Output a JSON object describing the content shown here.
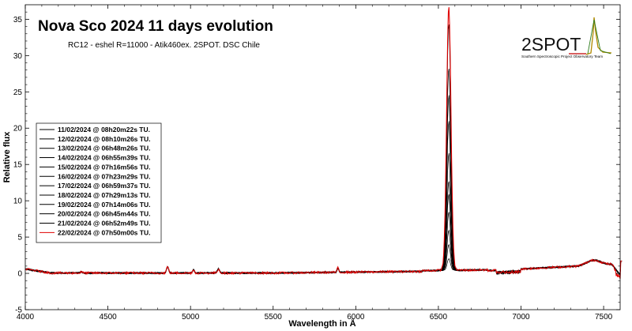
{
  "chart_data": {
    "type": "line",
    "title": "Nova Sco 2024 11 days evolution",
    "subtitle": "RC12 - eshel R=11000 - Atik460ex. 2SPOT. DSC Chile",
    "xlabel": "Wavelength in Å",
    "ylabel": "Relative flux",
    "xlim": [
      4000,
      7600
    ],
    "ylim": [
      -5,
      37
    ],
    "xticks": [
      "4000",
      "4500",
      "5000",
      "5500",
      "6000",
      "6500",
      "7000",
      "7500"
    ],
    "yticks": [
      "-5",
      "0",
      "5",
      "10",
      "15",
      "20",
      "25",
      "30",
      "35"
    ],
    "grid": false,
    "legend_position": "left",
    "peak_wavelength": 6563,
    "series": [
      {
        "name": "11/02/2024 @ 08h20m22s TU.",
        "color": "#000000",
        "peak": 1.6
      },
      {
        "name": "12/02/2024 @ 08h10m26s TU.",
        "color": "#000000",
        "peak": 3.5
      },
      {
        "name": "13/02/2024 @ 06h48m26s TU.",
        "color": "#000000",
        "peak": 5.5
      },
      {
        "name": "14/02/2024 @ 06h55m39s TU.",
        "color": "#000000",
        "peak": 8.0
      },
      {
        "name": "15/02/2024 @ 07h16m56s TU.",
        "color": "#000000",
        "peak": 10.5
      },
      {
        "name": "16/02/2024 @ 07h23m29s TU.",
        "color": "#000000",
        "peak": 12.2
      },
      {
        "name": "17/02/2024 @ 06h59m37s TU.",
        "color": "#000000",
        "peak": 16.0
      },
      {
        "name": "18/02/2024 @ 07h29m13s TU.",
        "color": "#000000",
        "peak": 20.5
      },
      {
        "name": "19/02/2024 @ 07h14m06s TU.",
        "color": "#000000",
        "peak": 24.0
      },
      {
        "name": "20/02/2024 @ 06h45m44s TU.",
        "color": "#000000",
        "peak": 27.8
      },
      {
        "name": "21/02/2024 @ 06h52m49s TU.",
        "color": "#000000",
        "peak": 33.8
      },
      {
        "name": "22/02/2024 @ 07h50m00s TU.",
        "color": "#e00000",
        "peak": 36.2
      }
    ]
  },
  "logo": {
    "text": "2SPOT",
    "subtitle": "Southern Spectroscopic Project Observatory Team"
  }
}
